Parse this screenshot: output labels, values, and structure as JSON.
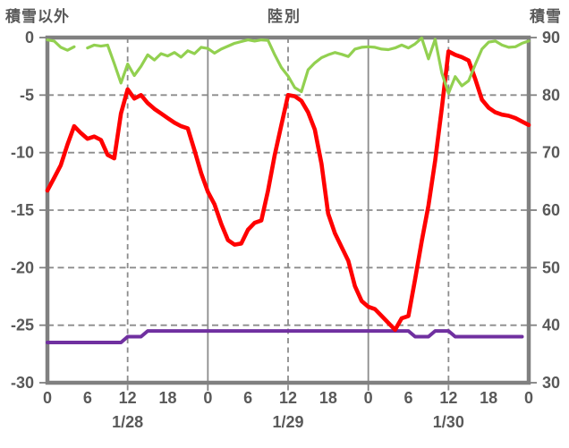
{
  "header": {
    "left_axis_title": "積雪以外",
    "chart_title": "陸別",
    "right_axis_title": "積雪"
  },
  "colors": {
    "frame": "#808080",
    "gridline": "#8c8c8c",
    "text": "#595959",
    "red_series": "#FF0000",
    "green_series": "#92D050",
    "purple_series": "#7030A0"
  },
  "chart_data": {
    "type": "line",
    "title": "陸別",
    "left_axis": {
      "label": "積雪以外",
      "max": 0,
      "min": -30,
      "ticks": [
        "0",
        "-5",
        "-10",
        "-15",
        "-20",
        "-25",
        "-30"
      ]
    },
    "right_axis": {
      "label": "積雪",
      "max": 90,
      "min": 30,
      "ticks": [
        "90",
        "80",
        "70",
        "60",
        "50",
        "40",
        "30"
      ]
    },
    "x_axis": {
      "total_hours": 72,
      "hours_per_day": 24,
      "tick_interval_hours": 6,
      "hour_labels_per_day": [
        "0",
        "6",
        "12",
        "18"
      ],
      "closing_hour_label": "0",
      "day_labels": [
        "1/28",
        "1/29",
        "1/30"
      ],
      "noon_line_style": "dashed",
      "midnight_line_style": "solid"
    },
    "grid": {
      "horizontal": "dashed",
      "dashed_verticals_at_noon": true
    },
    "series": [
      {
        "name": "purple-line",
        "axis": "left",
        "color": "#7030A0",
        "values": [
          -26.5,
          -26.5,
          -26.5,
          -26.5,
          -26.5,
          -26.5,
          -26.5,
          -26.5,
          -26.5,
          -26.5,
          -26.5,
          -26.5,
          -26.0,
          -26.0,
          -26.0,
          -25.5,
          -25.5,
          -25.5,
          -25.5,
          -25.5,
          -25.5,
          -25.5,
          -25.5,
          -25.5,
          -25.5,
          -25.5,
          -25.5,
          -25.5,
          -25.5,
          -25.5,
          -25.5,
          -25.5,
          -25.5,
          -25.5,
          -25.5,
          -25.5,
          -25.5,
          -25.5,
          -25.5,
          -25.5,
          -25.5,
          -25.5,
          -25.5,
          -25.5,
          -25.5,
          -25.5,
          -25.5,
          -25.5,
          -25.5,
          -25.5,
          -25.5,
          -25.5,
          -25.5,
          -25.5,
          -25.5,
          -26.0,
          -26.0,
          -26.0,
          -25.5,
          -25.5,
          -25.5,
          -26.0,
          -26.0,
          -26.0,
          -26.0,
          -26.0,
          -26.0,
          -26.0,
          -26.0,
          -26.0,
          -26.0,
          -26.0,
          null
        ]
      },
      {
        "name": "red-line",
        "axis": "left",
        "color": "#FF0000",
        "values": [
          -13.3,
          -12.2,
          -11.1,
          -9.3,
          -7.7,
          -8.3,
          -8.8,
          -8.6,
          -8.9,
          -10.2,
          -10.5,
          -6.6,
          -4.5,
          -5.3,
          -5.0,
          -5.7,
          -6.2,
          -6.6,
          -7.0,
          -7.4,
          -7.7,
          -7.9,
          -9.8,
          -11.8,
          -13.4,
          -14.5,
          -16.2,
          -17.6,
          -18.0,
          -17.9,
          -16.7,
          -16.1,
          -15.9,
          -13.3,
          -10.2,
          -7.6,
          -5.0,
          -5.1,
          -5.5,
          -6.5,
          -8.0,
          -11.0,
          -15.3,
          -17.0,
          -18.2,
          -19.4,
          -21.6,
          -22.9,
          -23.4,
          -23.6,
          -24.2,
          -24.8,
          -25.4,
          -24.4,
          -24.2,
          -21.0,
          -17.7,
          -14.6,
          -10.7,
          -6.1,
          -1.2,
          -1.5,
          -1.7,
          -2.0,
          -3.6,
          -5.4,
          -6.1,
          -6.5,
          -6.7,
          -6.8,
          -7.0,
          -7.3,
          -7.6
        ]
      },
      {
        "name": "green-line",
        "axis": "right",
        "color": "#92D050",
        "values": [
          89.6,
          89.4,
          88.3,
          87.8,
          88.4,
          null,
          88.2,
          88.7,
          88.5,
          88.7,
          85.5,
          82.1,
          85.4,
          83.4,
          85.0,
          87.0,
          86.1,
          87.2,
          86.8,
          87.4,
          86.6,
          87.7,
          87.2,
          88.3,
          88.1,
          87.3,
          88.0,
          88.5,
          89.0,
          89.3,
          89.6,
          89.4,
          89.6,
          89.5,
          87.0,
          84.8,
          83.3,
          81.3,
          80.6,
          84.4,
          85.6,
          86.5,
          87.0,
          87.4,
          87.1,
          86.7,
          88.0,
          88.3,
          88.4,
          88.3,
          88.0,
          87.9,
          88.2,
          88.7,
          88.2,
          88.9,
          89.9,
          86.3,
          89.7,
          83.8,
          80.3,
          83.2,
          81.6,
          82.5,
          85.3,
          88.0,
          89.2,
          89.4,
          88.7,
          88.3,
          88.4,
          89.0,
          89.4
        ]
      }
    ]
  }
}
